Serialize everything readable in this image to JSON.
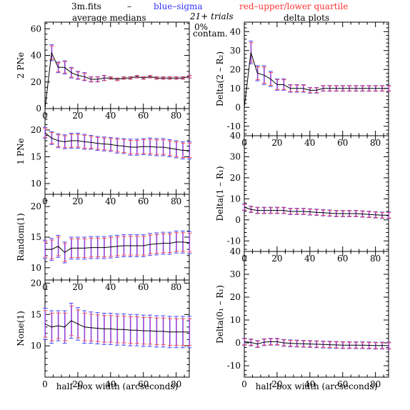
{
  "header": {
    "file": "3m.fits",
    "dash": "–",
    "blue_label": "blue–sigma",
    "red_label": "red–upper/lower quartile",
    "left_subtitle": "average medians",
    "center_line1": "21+ trials",
    "center_line2": "0%",
    "center_line3": "contam.",
    "right_subtitle": "delta plots"
  },
  "colors": {
    "line": "#000000",
    "sigma": "#4a4aff",
    "quartile": "#ff4a4a",
    "overlap": "#c040c0",
    "header_blue": "#3333ff",
    "header_red": "#ff3333"
  },
  "xlabel": "half–box width (arcseconds)",
  "x_ticks": [
    0,
    20,
    40,
    60,
    80
  ],
  "chart_data": [
    {
      "type": "line",
      "ylabel": "2 PNe",
      "xlim": [
        0,
        88
      ],
      "ylim": [
        0,
        65
      ],
      "y_ticks": [
        0,
        20,
        40,
        60
      ],
      "x": [
        0,
        4,
        8,
        12,
        16,
        20,
        24,
        28,
        32,
        36,
        40,
        44,
        48,
        52,
        56,
        60,
        64,
        68,
        72,
        76,
        80,
        84,
        88
      ],
      "y": [
        0,
        42,
        31,
        31,
        27,
        25,
        24,
        22,
        22,
        23,
        23,
        22,
        23,
        23,
        24,
        23,
        24,
        23,
        23,
        23,
        23,
        23,
        24
      ],
      "err": [
        0,
        6,
        4,
        5,
        4,
        3,
        3,
        2,
        2,
        2,
        1,
        1,
        1,
        1,
        1,
        1,
        1,
        1,
        1,
        1,
        1,
        1,
        1
      ]
    },
    {
      "type": "line",
      "ylabel": "1 PNe",
      "xlim": [
        0,
        88
      ],
      "ylim": [
        8,
        24
      ],
      "y_ticks": [
        10,
        15,
        20
      ],
      "x": [
        0,
        4,
        8,
        12,
        16,
        20,
        24,
        28,
        32,
        36,
        40,
        44,
        48,
        52,
        56,
        60,
        64,
        68,
        72,
        76,
        80,
        84,
        88
      ],
      "y": [
        19.5,
        18.5,
        18,
        17.8,
        18,
        18,
        17.8,
        17.7,
        17.5,
        17.4,
        17.3,
        17.1,
        17,
        16.8,
        16.8,
        16.9,
        16.9,
        16.8,
        16.8,
        16.6,
        16.4,
        16.2,
        16.2
      ],
      "err": [
        1,
        1.2,
        1.3,
        1.3,
        1.4,
        1.4,
        1.4,
        1.3,
        1.3,
        1.3,
        1.3,
        1.4,
        1.4,
        1.5,
        1.5,
        1.5,
        1.6,
        1.6,
        1.6,
        1.6,
        1.6,
        1.6,
        1.6
      ]
    },
    {
      "type": "line",
      "ylabel": "Random(1)",
      "xlim": [
        0,
        88
      ],
      "ylim": [
        8,
        22
      ],
      "y_ticks": [
        10,
        15,
        20
      ],
      "x": [
        0,
        4,
        8,
        12,
        16,
        20,
        24,
        28,
        32,
        36,
        40,
        44,
        48,
        52,
        56,
        60,
        64,
        68,
        72,
        76,
        80,
        84,
        88
      ],
      "y": [
        13,
        13,
        13.5,
        12.5,
        13.2,
        13.2,
        13.2,
        13.3,
        13.3,
        13.3,
        13.4,
        13.5,
        13.6,
        13.6,
        13.6,
        13.6,
        13.8,
        13.9,
        14,
        14,
        14.2,
        14.2,
        14.1
      ],
      "err": [
        1.5,
        1.8,
        1.8,
        1.7,
        1.8,
        1.8,
        1.8,
        1.8,
        1.8,
        1.8,
        1.8,
        1.8,
        1.8,
        1.8,
        1.8,
        1.8,
        1.8,
        1.8,
        1.8,
        1.8,
        1.8,
        1.8,
        1.8
      ]
    },
    {
      "type": "line",
      "ylabel": "None(1)",
      "xlim": [
        0,
        88
      ],
      "ylim": [
        5,
        20.5
      ],
      "y_ticks": [
        10,
        15,
        20
      ],
      "x": [
        0,
        4,
        8,
        12,
        16,
        20,
        24,
        28,
        32,
        36,
        40,
        44,
        48,
        52,
        56,
        60,
        64,
        68,
        72,
        76,
        80,
        84,
        88
      ],
      "y": [
        13.5,
        13,
        13.2,
        13,
        14,
        13.5,
        13,
        12.9,
        12.8,
        12.7,
        12.7,
        12.6,
        12.6,
        12.5,
        12.5,
        12.4,
        12.4,
        12.3,
        12.3,
        12.2,
        12.2,
        12.2,
        12.2
      ],
      "err": [
        2.5,
        2.6,
        2.4,
        2.6,
        2.8,
        2.6,
        2.6,
        2.5,
        2.5,
        2.5,
        2.5,
        2.5,
        2.5,
        2.5,
        2.5,
        2.5,
        2.5,
        2.5,
        2.5,
        2.5,
        2.5,
        2.5,
        2.5
      ]
    },
    {
      "type": "line",
      "ylabel": "Delta(2 – R₂)",
      "xlim": [
        0,
        88
      ],
      "ylim": [
        -15,
        45
      ],
      "y_ticks": [
        -10,
        0,
        10,
        20,
        30,
        40
      ],
      "x": [
        0,
        4,
        8,
        12,
        16,
        20,
        24,
        28,
        32,
        36,
        40,
        44,
        48,
        52,
        56,
        60,
        64,
        68,
        72,
        76,
        80,
        84,
        88
      ],
      "y": [
        0,
        29,
        18,
        17,
        15,
        12,
        12,
        10,
        10,
        10,
        9,
        9,
        10,
        10,
        10,
        10,
        10,
        10,
        10,
        10,
        10,
        10,
        10
      ],
      "err": [
        0,
        6,
        4,
        5,
        4,
        3,
        3,
        2,
        2,
        2,
        1.5,
        1.5,
        1.5,
        1.5,
        1.5,
        1.5,
        1.5,
        1.5,
        1.5,
        1.5,
        1.5,
        1.5,
        1.5
      ]
    },
    {
      "type": "line",
      "ylabel": "Delta(1 – R₁)",
      "xlim": [
        0,
        88
      ],
      "ylim": [
        -15,
        40
      ],
      "y_ticks": [
        -10,
        0,
        10,
        20,
        30,
        40
      ],
      "x": [
        0,
        4,
        8,
        12,
        16,
        20,
        24,
        28,
        32,
        36,
        40,
        44,
        48,
        52,
        56,
        60,
        64,
        68,
        72,
        76,
        80,
        84,
        88
      ],
      "y": [
        6,
        5,
        4.5,
        4.5,
        4.5,
        4.5,
        4.5,
        4,
        4,
        4,
        3.8,
        3.6,
        3.4,
        3.2,
        3,
        3,
        3,
        3,
        2.8,
        2.6,
        2.4,
        2.2,
        2.2
      ],
      "err": [
        1.5,
        1.5,
        1.5,
        1.5,
        1.5,
        1.5,
        1.5,
        1.5,
        1.5,
        1.5,
        1.5,
        1.5,
        1.5,
        1.5,
        1.5,
        1.5,
        1.5,
        1.5,
        1.5,
        1.5,
        1.5,
        1.5,
        1.5
      ]
    },
    {
      "type": "line",
      "ylabel": "Delta(0₁ – R₁)",
      "xlim": [
        0,
        88
      ],
      "ylim": [
        -15,
        40
      ],
      "y_ticks": [
        -10,
        0,
        10,
        20,
        30,
        40
      ],
      "x": [
        0,
        4,
        8,
        12,
        16,
        20,
        24,
        28,
        32,
        36,
        40,
        44,
        48,
        52,
        56,
        60,
        64,
        68,
        72,
        76,
        80,
        84,
        88
      ],
      "y": [
        0.5,
        0.2,
        -0.5,
        0.3,
        0.5,
        0.5,
        0,
        -0.2,
        -0.3,
        -0.4,
        -0.5,
        -0.6,
        -0.7,
        -0.8,
        -0.9,
        -1,
        -1,
        -1,
        -1,
        -1.1,
        -1.2,
        -1.2,
        -1.2
      ],
      "err": [
        1.5,
        1.5,
        1.5,
        1.5,
        1.5,
        1.5,
        1.5,
        1.5,
        1.5,
        1.5,
        1.5,
        1.5,
        1.5,
        1.5,
        1.5,
        1.5,
        1.5,
        1.5,
        1.5,
        1.5,
        1.5,
        1.5,
        1.5
      ]
    }
  ]
}
